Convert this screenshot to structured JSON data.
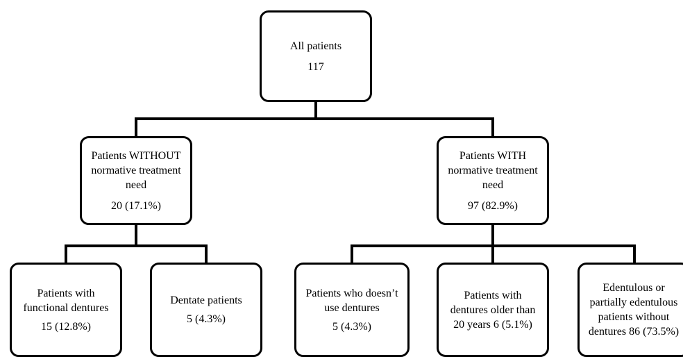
{
  "diagram": {
    "root": {
      "label": "All patients",
      "value": "117"
    },
    "without_need": {
      "label": "Patients WITHOUT\nnormative treatment\nneed",
      "value": "20 (17.1%)"
    },
    "with_need": {
      "label": "Patients WITH\nnormative treatment\nneed",
      "value": "97 (82.9%)"
    },
    "functional_dentures": {
      "label": "Patients with\nfunctional dentures",
      "value": "15 (12.8%)"
    },
    "dentate": {
      "label": "Dentate patients",
      "value": "5 (4.3%)"
    },
    "no_dentures_use": {
      "label": "Patients who doesn’t\nuse dentures",
      "value": "5 (4.3%)"
    },
    "old_dentures": {
      "label": "Patients with\ndentures older than\n20 years 6 (5.1%)",
      "value": ""
    },
    "edentulous": {
      "label": "Edentulous or\npartially edentulous\npatients without\ndentures 86 (73.5%)",
      "value": ""
    }
  }
}
